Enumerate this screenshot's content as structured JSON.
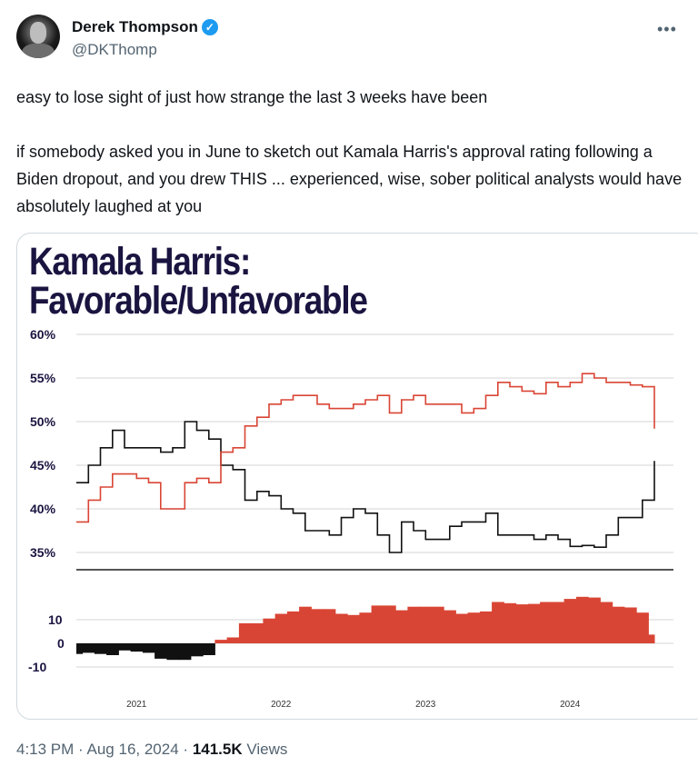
{
  "author": {
    "name": "Derek Thompson",
    "handle": "@DKThomp",
    "verified": true,
    "avatar_icon": "avatar-photo"
  },
  "menu_icon": "more-horizontal-icon",
  "tweet": {
    "paragraphs": [
      "easy to lose sight of just how strange the last 3 weeks have been",
      "if somebody asked you in June to sketch out Kamala Harris's approval rating following a Biden dropout, and you drew THIS ... experienced, wise, sober political analysts would have absolutely laughed at you"
    ]
  },
  "footer": {
    "time": "4:13 PM",
    "date": "Aug 16, 2024",
    "views_count": "141.5K",
    "views_label": "Views",
    "sep": "·"
  },
  "colors": {
    "favorable": "#111111",
    "unfavorable": "#d94535",
    "title": "#1a1440",
    "net_positive": "#d94535",
    "net_negative": "#111111"
  },
  "chart_data": [
    {
      "type": "line",
      "title_line1": "Kamala Harris:",
      "title_line2": "Favorable/Unfavorable",
      "x_start": "2020-08",
      "x_end": "2024-08",
      "x_step": "month",
      "x_tick_labels": [
        "2021",
        "2022",
        "2023",
        "2024"
      ],
      "y_ticks": [
        60,
        55,
        50,
        45,
        40,
        35
      ],
      "y_tick_labels": [
        "60%",
        "55%",
        "50%",
        "45%",
        "40%",
        "35%"
      ],
      "ylim": [
        33,
        60
      ],
      "grid": true,
      "series": [
        {
          "key": "favorable",
          "values": [
            43,
            45,
            47,
            49,
            47,
            47,
            47,
            46.5,
            47,
            50,
            49,
            48,
            45,
            44.5,
            41,
            42,
            41.5,
            40,
            39.5,
            37.5,
            37.5,
            37,
            39,
            40,
            39.5,
            37,
            35,
            38.5,
            37.5,
            36.5,
            36.5,
            38,
            38.5,
            38.5,
            39.5,
            37,
            37,
            37,
            36.5,
            37,
            36.5,
            35.7,
            35.8,
            35.6,
            37,
            39,
            39,
            41,
            45.5
          ]
        },
        {
          "key": "unfavorable",
          "values": [
            38.5,
            41,
            42.5,
            44,
            44,
            43.5,
            43,
            40,
            40,
            43,
            43.5,
            43,
            46.5,
            47,
            49.5,
            50.5,
            52,
            52.5,
            53,
            53,
            52,
            51.5,
            51.5,
            52,
            52.5,
            53,
            51,
            52.5,
            53,
            52,
            52,
            52,
            51,
            51.5,
            53,
            54.5,
            54,
            53.5,
            53.2,
            54.5,
            54,
            54.5,
            55.5,
            55,
            54.5,
            54.5,
            54.2,
            54,
            49.2
          ]
        }
      ]
    },
    {
      "type": "area",
      "description_of_values": "unfavorable minus favorable",
      "y_ticks": [
        10,
        0,
        -10
      ],
      "y_tick_labels": [
        "10",
        "0",
        "-10"
      ],
      "ylim": [
        -12,
        20
      ],
      "grid": true
    }
  ]
}
